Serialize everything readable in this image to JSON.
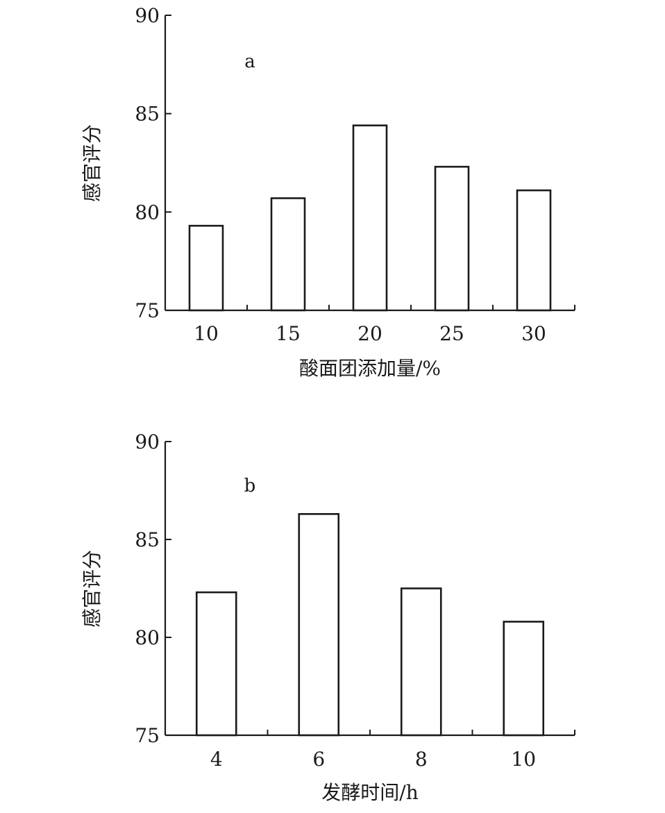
{
  "chart_data": [
    {
      "type": "bar",
      "panel_label": "a",
      "categories": [
        "10",
        "15",
        "20",
        "25",
        "30"
      ],
      "values": [
        79.3,
        80.7,
        84.4,
        82.3,
        81.1
      ],
      "xlabel": "酸面团添加量/%",
      "ylabel": "感官评分",
      "ylim": [
        75,
        90
      ],
      "yticks": [
        75,
        80,
        85,
        90
      ],
      "grid": false,
      "legend": "none"
    },
    {
      "type": "bar",
      "panel_label": "b",
      "categories": [
        "4",
        "6",
        "8",
        "10"
      ],
      "values": [
        82.3,
        86.3,
        82.5,
        80.8
      ],
      "xlabel": "发酵时间/h",
      "ylabel": "感官评分",
      "ylim": [
        75,
        90
      ],
      "yticks": [
        75,
        80,
        85,
        90
      ],
      "grid": false,
      "legend": "none"
    }
  ]
}
